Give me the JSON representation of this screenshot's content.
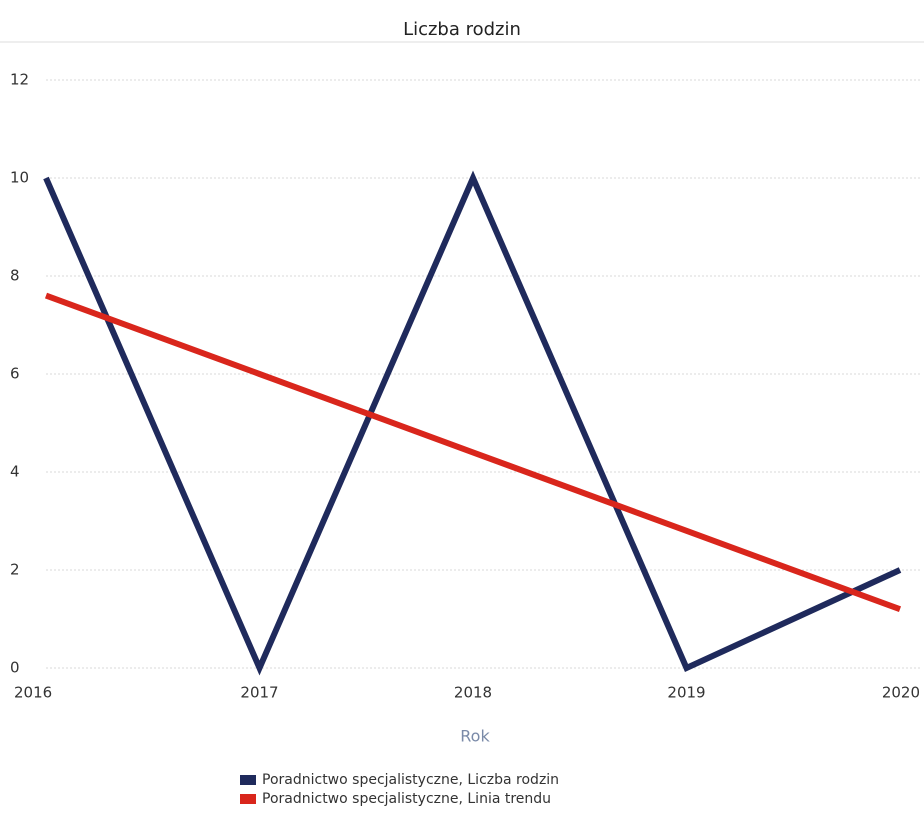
{
  "chart_data": {
    "type": "line",
    "title": "Liczba rodzin",
    "x_label": "Rok",
    "x": [
      2016,
      2017,
      2018,
      2019,
      2020
    ],
    "xlim": [
      2016,
      2020
    ],
    "xticks": [
      2016,
      2017,
      2018,
      2019,
      2020
    ],
    "ylim": [
      0,
      12
    ],
    "yticks": [
      0,
      2,
      4,
      6,
      8,
      10,
      12
    ],
    "grid": true,
    "legend": "bottom",
    "series": [
      {
        "name": "Poradnictwo specjalistyczne, Liczba rodzin",
        "color": "#1f2a5c",
        "values": [
          10,
          0,
          10,
          0,
          2
        ]
      },
      {
        "name": "Poradnictwo specjalistyczne, Linia trendu",
        "color": "#d9261c",
        "values": [
          7.6,
          6.0,
          4.4,
          2.8,
          1.2
        ]
      }
    ]
  }
}
